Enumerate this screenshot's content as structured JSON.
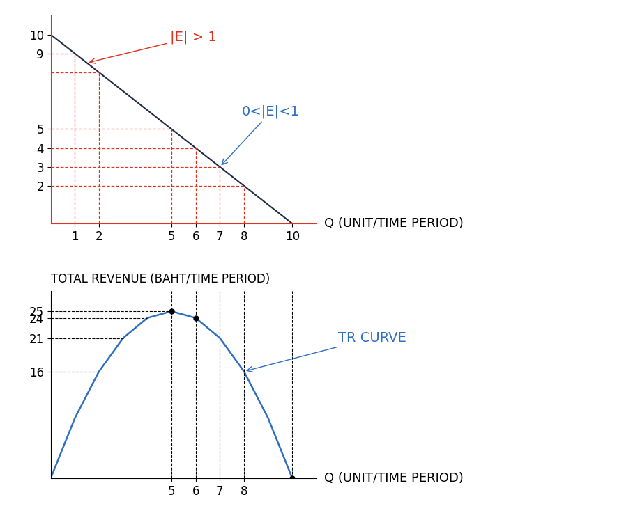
{
  "chart_data": [
    {
      "type": "line",
      "x": [
        0,
        10
      ],
      "values": [
        10,
        0
      ],
      "color": "#1f2a44",
      "guides": {
        "x": [
          1,
          2,
          5,
          6,
          7,
          8
        ],
        "y": [
          9,
          8,
          5,
          4,
          3,
          2
        ],
        "color": "#e0301e",
        "line_style": "dashed"
      },
      "annotations": [
        {
          "text": "|E| > 1",
          "color": "#e0301e"
        },
        {
          "text": "0<|E|<1",
          "color": "#2e6fc4"
        }
      ],
      "xlabel": "Q (UNIT/TIME PERIOD)",
      "xlim": [
        0,
        11
      ],
      "ylim": [
        0,
        11
      ],
      "xticks": [
        1,
        2,
        5,
        6,
        7,
        8,
        10
      ],
      "yticks": [
        2,
        3,
        4,
        5,
        9,
        10
      ]
    },
    {
      "type": "line",
      "x": [
        0,
        1,
        2,
        3,
        4,
        5,
        6,
        7,
        8,
        9,
        10
      ],
      "values": [
        0,
        9,
        16,
        21,
        24,
        25,
        24,
        21,
        16,
        9,
        0
      ],
      "color": "#2e6fc4",
      "marker": "o",
      "marked_x": [
        5,
        6,
        10
      ],
      "guides": {
        "x": [
          5,
          6,
          7,
          8,
          10
        ],
        "color": "#000000",
        "line_style": "dashed"
      },
      "annotations": [
        {
          "text": "TR CURVE",
          "color": "#2e6fc4"
        }
      ],
      "ylabel": "TOTAL REVENUE (BAHT/TIME PERIOD)",
      "xlabel": "Q (UNIT/TIME PERIOD)",
      "xlim": [
        0,
        11
      ],
      "ylim": [
        0,
        28
      ],
      "xticks": [
        5,
        6,
        7,
        8
      ],
      "yticks": [
        16,
        21,
        24,
        25
      ]
    }
  ]
}
